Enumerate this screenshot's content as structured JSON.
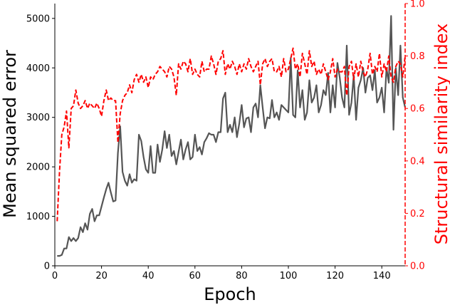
{
  "chart_data": {
    "type": "line",
    "xlabel": "Epoch",
    "ylabel": "Mean squared error",
    "y2label": "Structural similarity index",
    "xlim": [
      0,
      150
    ],
    "ylim": [
      0,
      5300
    ],
    "y2lim": [
      0.0,
      1.0
    ],
    "xticks": [
      0,
      20,
      40,
      60,
      80,
      100,
      120,
      140
    ],
    "yticks": [
      0,
      1000,
      2000,
      3000,
      4000,
      5000
    ],
    "y2ticks": [
      "0.0",
      "0.2",
      "0.4",
      "0.6",
      "0.8",
      "1.0"
    ],
    "grid": false,
    "colors": {
      "mse": "#555555",
      "ssim": "#ff0000"
    },
    "series": [
      {
        "axis": "left",
        "style": "solid",
        "x": [
          1,
          2,
          3,
          4,
          5,
          6,
          7,
          8,
          9,
          10,
          11,
          12,
          13,
          14,
          15,
          16,
          17,
          18,
          19,
          20,
          21,
          22,
          23,
          24,
          25,
          26,
          27,
          28,
          29,
          30,
          31,
          32,
          33,
          34,
          35,
          36,
          37,
          38,
          39,
          40,
          41,
          42,
          43,
          44,
          45,
          46,
          47,
          48,
          49,
          50,
          51,
          52,
          53,
          54,
          55,
          56,
          57,
          58,
          59,
          60,
          61,
          62,
          63,
          64,
          65,
          66,
          67,
          68,
          69,
          70,
          71,
          72,
          73,
          74,
          75,
          76,
          77,
          78,
          79,
          80,
          81,
          82,
          83,
          84,
          85,
          86,
          87,
          88,
          89,
          90,
          91,
          92,
          93,
          94,
          95,
          96,
          97,
          98,
          99,
          100,
          101,
          102,
          103,
          104,
          105,
          106,
          107,
          108,
          109,
          110,
          111,
          112,
          113,
          114,
          115,
          116,
          117,
          118,
          119,
          120,
          121,
          122,
          123,
          124,
          125,
          126,
          127,
          128,
          129,
          130,
          131,
          132,
          133,
          134,
          135,
          136,
          137,
          138,
          139,
          140,
          141,
          142,
          143,
          144,
          145,
          146,
          147,
          148,
          149,
          150
        ],
        "values": [
          200,
          200,
          220,
          350,
          350,
          580,
          500,
          560,
          500,
          560,
          780,
          680,
          860,
          730,
          1050,
          1150,
          900,
          1020,
          1020,
          1200,
          1380,
          1550,
          1680,
          1480,
          1300,
          1320,
          2280,
          2820,
          1900,
          1720,
          1620,
          1850,
          1680,
          1750,
          1720,
          2650,
          2520,
          2200,
          1950,
          1880,
          2420,
          1880,
          1880,
          2450,
          2100,
          2350,
          2720,
          2380,
          2650,
          2220,
          2320,
          2050,
          2300,
          2550,
          2150,
          2350,
          2500,
          2150,
          2200,
          2650,
          2320,
          2400,
          2250,
          2500,
          2580,
          2680,
          2650,
          2650,
          2500,
          2700,
          2700,
          3380,
          3500,
          2700,
          2850,
          2700,
          3000,
          2600,
          2880,
          3250,
          2800,
          2980,
          3000,
          2700,
          3200,
          3280,
          3000,
          3650,
          3200,
          2780,
          3000,
          2980,
          3350,
          3000,
          3100,
          2950,
          3250,
          3200,
          3150,
          3100,
          4200,
          3050,
          3000,
          3950,
          3200,
          3550,
          2950,
          3100,
          3750,
          3300,
          3400,
          3650,
          3100,
          3250,
          3550,
          3450,
          3900,
          3100,
          3650,
          3200,
          4100,
          3800,
          3400,
          3200,
          4450,
          3050,
          3300,
          3850,
          2950,
          3600,
          3750,
          4000,
          3500,
          3800,
          3850,
          3550,
          3950,
          3300,
          3400,
          3600,
          3100,
          4000,
          3700,
          5050,
          2750,
          4000,
          3450,
          4450,
          3400,
          3200
        ]
      },
      {
        "axis": "right",
        "style": "dashed",
        "x": [
          1,
          2,
          3,
          4,
          5,
          6,
          7,
          8,
          9,
          10,
          11,
          12,
          13,
          14,
          15,
          16,
          17,
          18,
          19,
          20,
          21,
          22,
          23,
          24,
          25,
          26,
          27,
          28,
          29,
          30,
          31,
          32,
          33,
          34,
          35,
          36,
          37,
          38,
          39,
          40,
          41,
          42,
          43,
          44,
          45,
          46,
          47,
          48,
          49,
          50,
          51,
          52,
          53,
          54,
          55,
          56,
          57,
          58,
          59,
          60,
          61,
          62,
          63,
          64,
          65,
          66,
          67,
          68,
          69,
          70,
          71,
          72,
          73,
          74,
          75,
          76,
          77,
          78,
          79,
          80,
          81,
          82,
          83,
          84,
          85,
          86,
          87,
          88,
          89,
          90,
          91,
          92,
          93,
          94,
          95,
          96,
          97,
          98,
          99,
          100,
          101,
          102,
          103,
          104,
          105,
          106,
          107,
          108,
          109,
          110,
          111,
          112,
          113,
          114,
          115,
          116,
          117,
          118,
          119,
          120,
          121,
          122,
          123,
          124,
          125,
          126,
          127,
          128,
          129,
          130,
          131,
          132,
          133,
          134,
          135,
          136,
          137,
          138,
          139,
          140,
          141,
          142,
          143,
          144,
          145,
          146,
          147,
          148,
          149,
          150
        ],
        "values": [
          0.17,
          0.36,
          0.5,
          0.53,
          0.59,
          0.45,
          0.6,
          0.61,
          0.67,
          0.62,
          0.6,
          0.61,
          0.63,
          0.6,
          0.62,
          0.61,
          0.6,
          0.62,
          0.6,
          0.57,
          0.63,
          0.67,
          0.63,
          0.64,
          0.63,
          0.63,
          0.47,
          0.58,
          0.63,
          0.65,
          0.66,
          0.69,
          0.66,
          0.71,
          0.73,
          0.7,
          0.73,
          0.7,
          0.72,
          0.68,
          0.72,
          0.71,
          0.73,
          0.74,
          0.76,
          0.75,
          0.74,
          0.72,
          0.76,
          0.75,
          0.72,
          0.65,
          0.77,
          0.75,
          0.78,
          0.77,
          0.74,
          0.79,
          0.73,
          0.75,
          0.73,
          0.72,
          0.78,
          0.74,
          0.75,
          0.75,
          0.8,
          0.77,
          0.73,
          0.78,
          0.79,
          0.82,
          0.73,
          0.77,
          0.75,
          0.78,
          0.76,
          0.73,
          0.77,
          0.74,
          0.77,
          0.75,
          0.79,
          0.76,
          0.74,
          0.76,
          0.78,
          0.69,
          0.77,
          0.79,
          0.76,
          0.78,
          0.79,
          0.74,
          0.74,
          0.76,
          0.72,
          0.79,
          0.74,
          0.75,
          0.79,
          0.83,
          0.75,
          0.77,
          0.72,
          0.81,
          0.77,
          0.73,
          0.82,
          0.76,
          0.78,
          0.73,
          0.75,
          0.73,
          0.77,
          0.74,
          0.71,
          0.74,
          0.79,
          0.72,
          0.75,
          0.74,
          0.74,
          0.76,
          0.65,
          0.76,
          0.78,
          0.71,
          0.77,
          0.72,
          0.78,
          0.74,
          0.72,
          0.75,
          0.81,
          0.73,
          0.76,
          0.74,
          0.81,
          0.72,
          0.77,
          0.74,
          0.8,
          0.72,
          0.7,
          0.76,
          0.78,
          0.77,
          0.72,
          0.8
        ]
      }
    ]
  }
}
